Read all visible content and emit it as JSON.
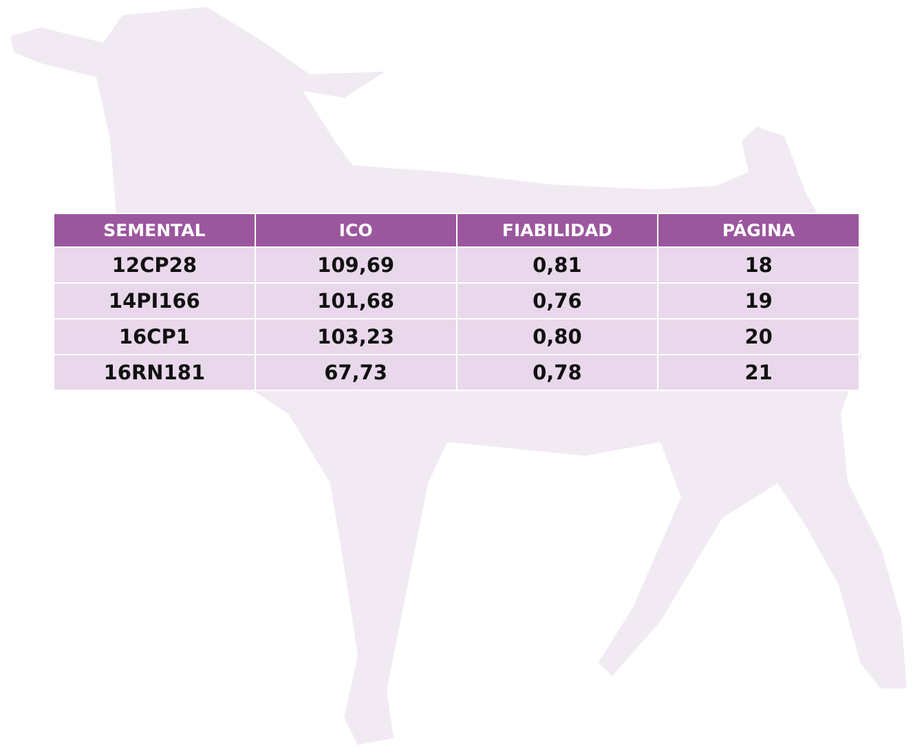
{
  "table": {
    "header": [
      "SEMENTAL",
      "ICO",
      "FIABILIDAD",
      "PÁGINA"
    ],
    "rows": [
      [
        "12CP28",
        "109,69",
        "0,81",
        "18"
      ],
      [
        "14PI166",
        "101,68",
        "0,76",
        "19"
      ],
      [
        "16CP1",
        "103,23",
        "0,80",
        "20"
      ],
      [
        "16RN181",
        "67,73",
        "0,78",
        "21"
      ]
    ]
  }
}
